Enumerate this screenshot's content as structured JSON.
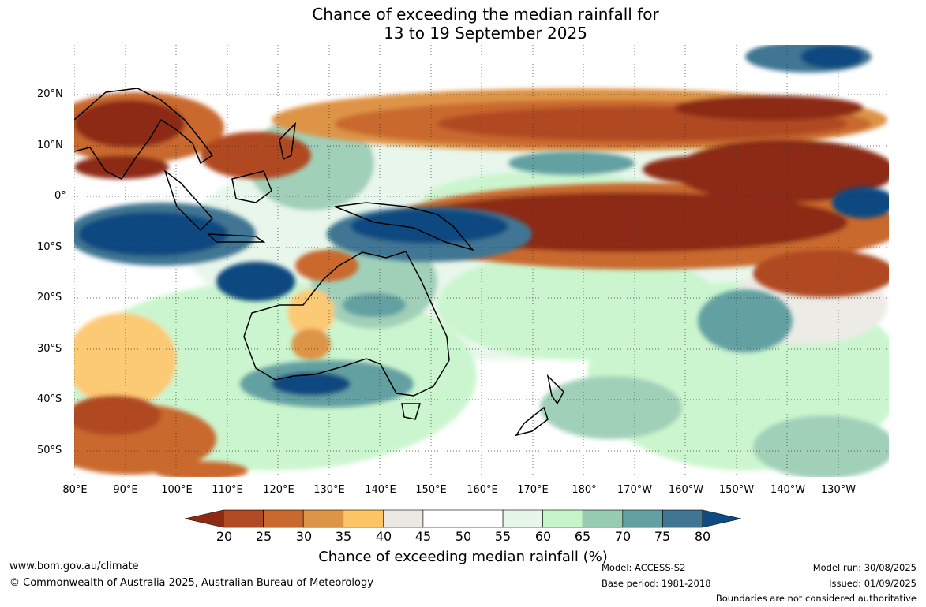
{
  "title": {
    "line1": "Chance of exceeding the median rainfall for",
    "line2": "13 to 19 September 2025"
  },
  "map": {
    "lat_labels": [
      "20°N",
      "10°N",
      "0°",
      "10°S",
      "20°S",
      "30°S",
      "40°S",
      "50°S"
    ],
    "lon_labels": [
      "80°E",
      "90°E",
      "100°E",
      "110°E",
      "120°E",
      "130°E",
      "140°E",
      "150°E",
      "160°E",
      "170°E",
      "180°",
      "170°W",
      "160°W",
      "150°W",
      "140°W",
      "130°W"
    ],
    "lat_values": [
      20,
      10,
      0,
      -10,
      -20,
      -30,
      -40,
      -50
    ],
    "lon_values": [
      80,
      90,
      100,
      110,
      120,
      130,
      140,
      150,
      160,
      170,
      180,
      190,
      200,
      210,
      220,
      230
    ]
  },
  "colorbar": {
    "ticks": [
      "20",
      "25",
      "30",
      "35",
      "40",
      "45",
      "50",
      "55",
      "60",
      "65",
      "70",
      "75",
      "80"
    ],
    "colors": [
      "#8c2a14",
      "#b04a24",
      "#c9692f",
      "#de9446",
      "#fcc465",
      "#ece9e4",
      "#ffffff",
      "#ffffff",
      "#e6f6e9",
      "#c6f5c9",
      "#97cbb2",
      "#64a0a2",
      "#417693",
      "#0f4a80"
    ],
    "title": "Chance of exceeding median rainfall (%)"
  },
  "footer": {
    "url": "www.bom.gov.au/climate",
    "copyright": "© Commonwealth of Australia 2025, Australian Bureau of Meteorology",
    "model": "Model: ACCESS-S2",
    "base_period": "Base period: 1981-2018",
    "model_run": "Model run: 30/08/2025",
    "issued": "Issued: 01/09/2025",
    "disclaimer": "Boundaries are not considered authoritative"
  }
}
